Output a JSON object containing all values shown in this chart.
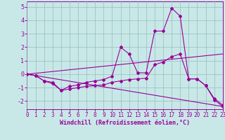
{
  "xlabel": "Windchill (Refroidissement éolien,°C)",
  "x": [
    0,
    1,
    2,
    3,
    4,
    5,
    6,
    7,
    8,
    9,
    10,
    11,
    12,
    13,
    14,
    15,
    16,
    17,
    18,
    19,
    20,
    21,
    22,
    23
  ],
  "line1": [
    0,
    -0.1,
    -0.5,
    -0.6,
    -1.2,
    -0.9,
    -0.8,
    -0.6,
    -0.5,
    -0.4,
    -0.15,
    2.0,
    1.5,
    0.1,
    0.1,
    3.2,
    3.2,
    4.9,
    4.3,
    -0.35,
    -0.35,
    -0.85,
    -1.8,
    -2.3
  ],
  "line2": [
    0,
    -0.1,
    -0.5,
    -0.7,
    -1.2,
    -1.1,
    -1.0,
    -0.9,
    -0.85,
    -0.8,
    -0.6,
    -0.5,
    -0.4,
    -0.35,
    -0.3,
    0.7,
    0.9,
    1.3,
    1.5,
    -0.35,
    -0.35,
    -0.85,
    -1.9,
    -2.4
  ],
  "line3_x": [
    0,
    23
  ],
  "line3_y": [
    0.0,
    1.5
  ],
  "line4_x": [
    0,
    23
  ],
  "line4_y": [
    0.0,
    -2.4
  ],
  "color": "#990099",
  "background": "#c8e8e8",
  "grid_color": "#99bbbb",
  "ylim": [
    -2.6,
    5.4
  ],
  "xlim": [
    0,
    23
  ],
  "yticks": [
    -2,
    -1,
    0,
    1,
    2,
    3,
    4,
    5
  ],
  "xticks": [
    0,
    1,
    2,
    3,
    4,
    5,
    6,
    7,
    8,
    9,
    10,
    11,
    12,
    13,
    14,
    15,
    16,
    17,
    18,
    19,
    20,
    21,
    22,
    23
  ],
  "tick_fontsize": 5.5,
  "xlabel_fontsize": 6.0,
  "linewidth": 0.8,
  "markersize": 2.0
}
